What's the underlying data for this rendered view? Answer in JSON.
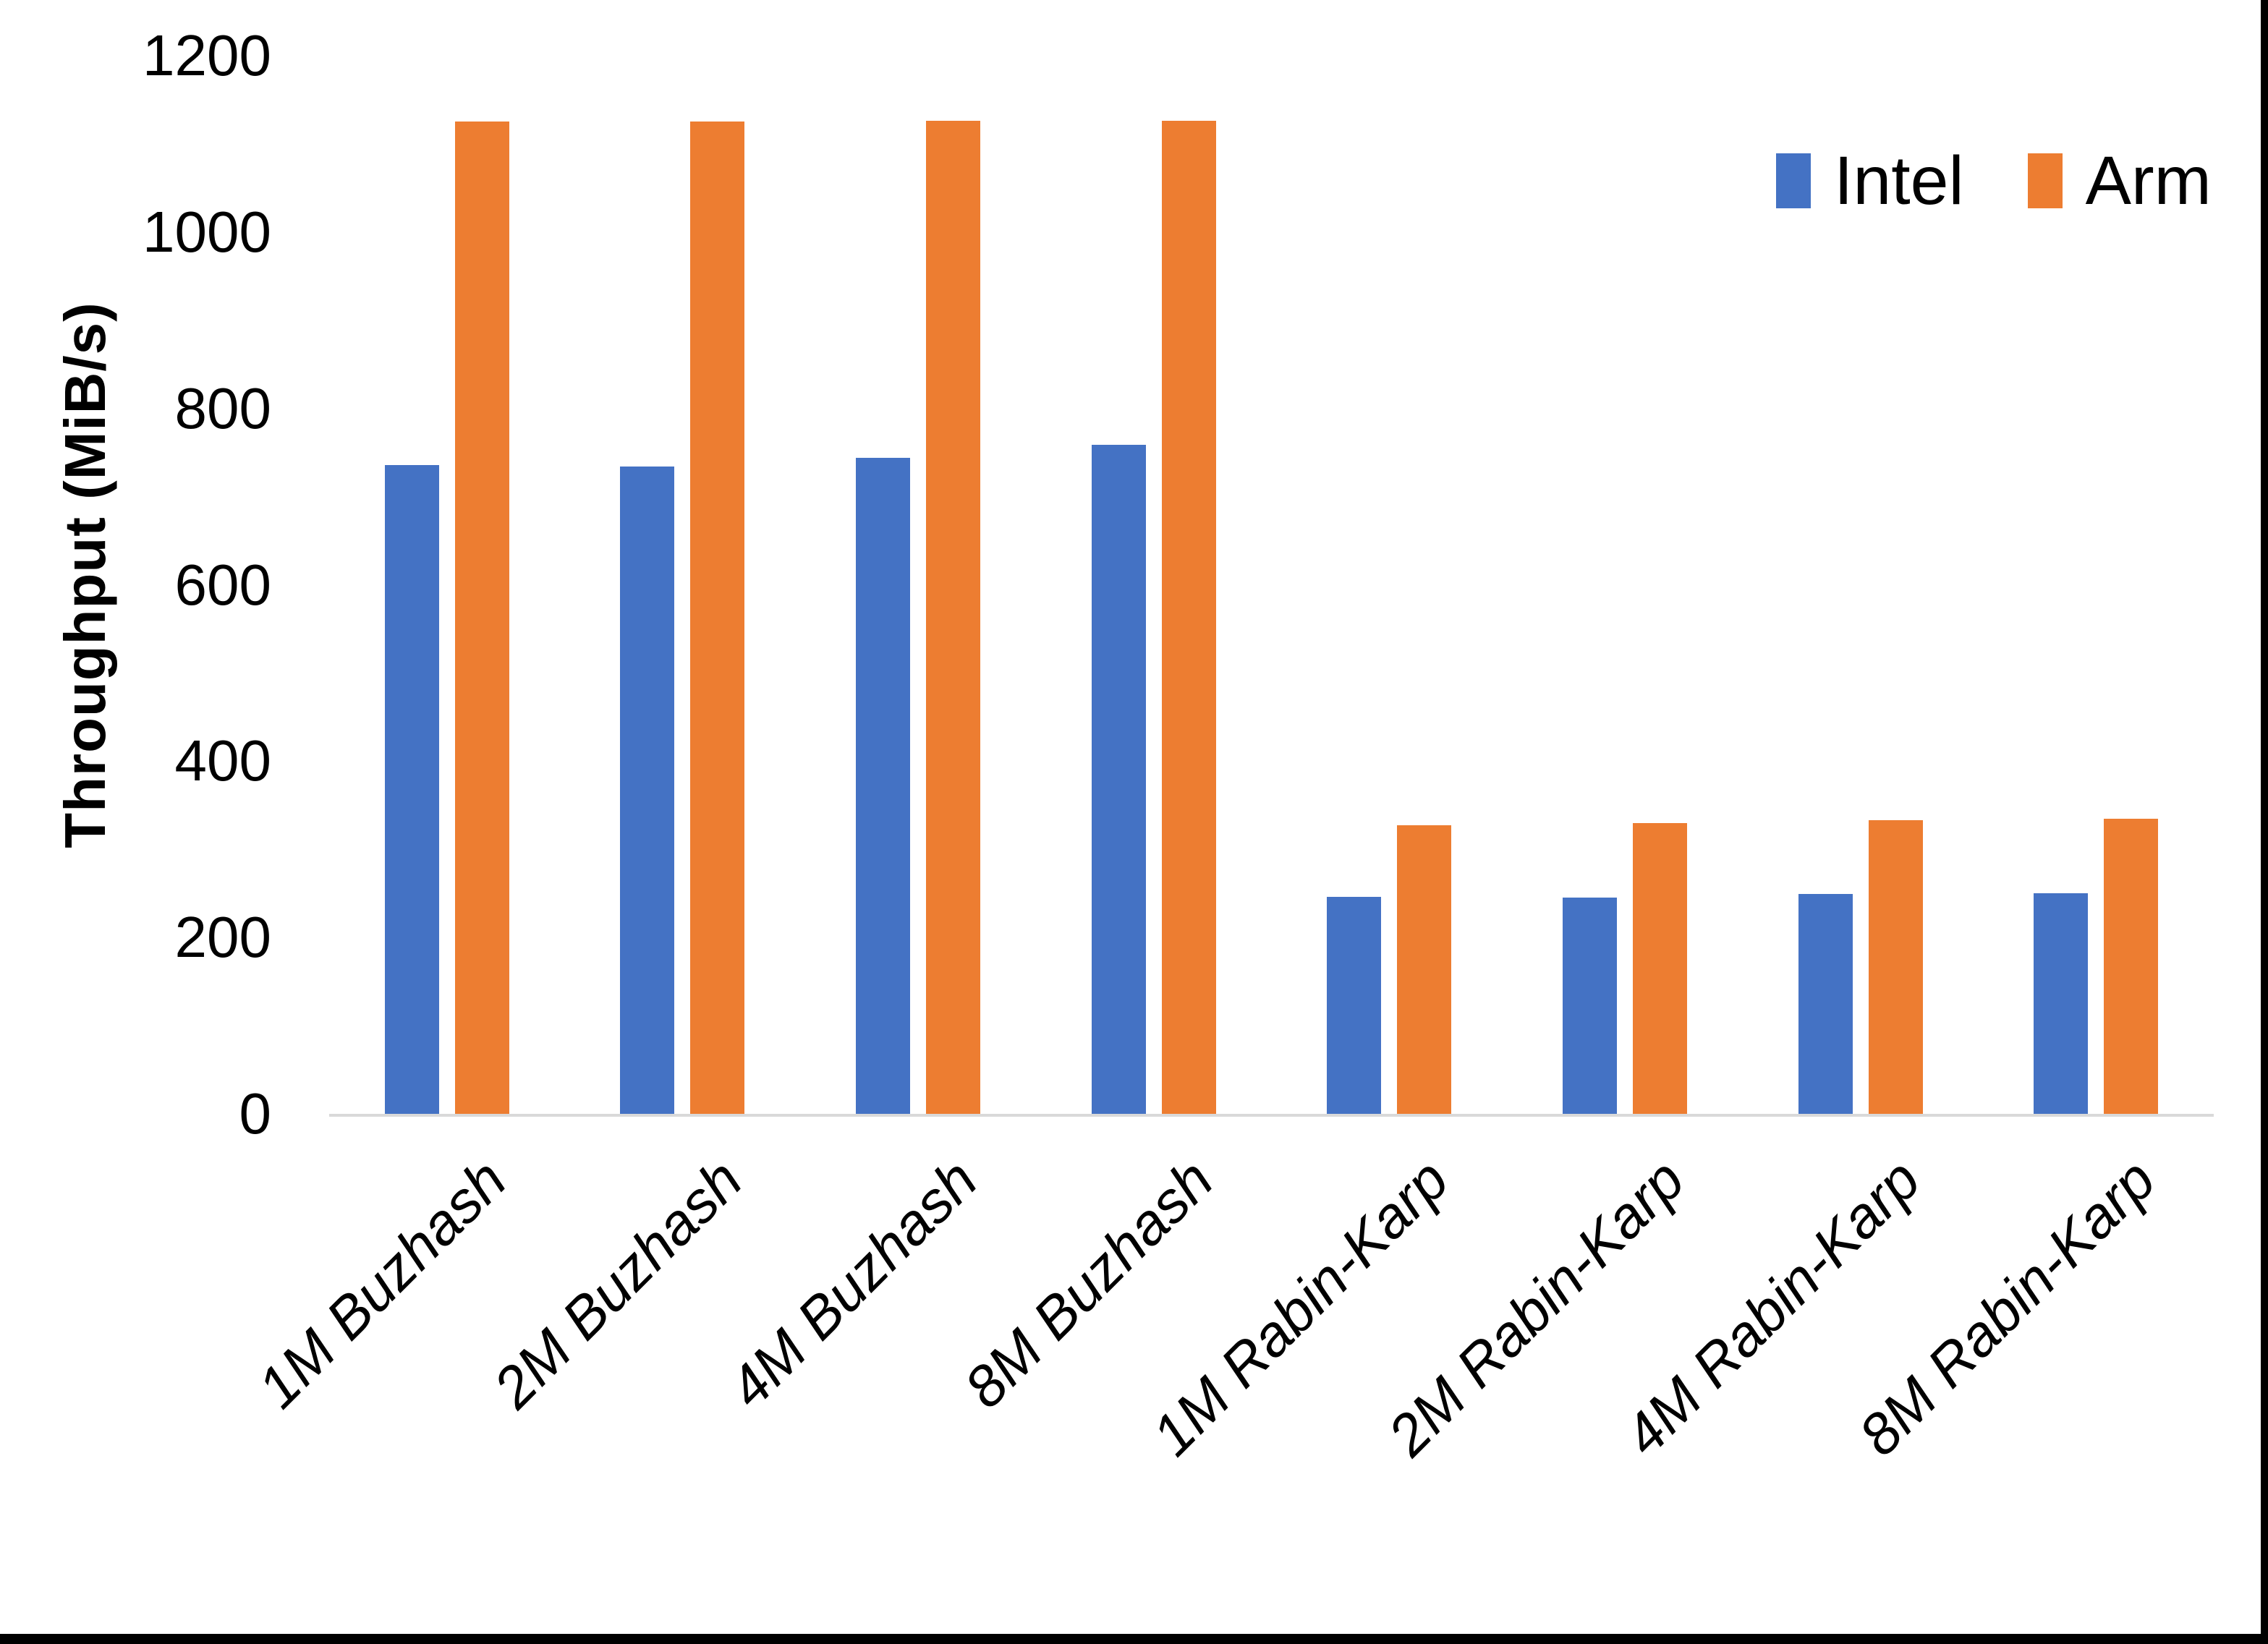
{
  "chart_data": {
    "type": "bar",
    "title": "",
    "ylabel": "Throughput (MiB/s)",
    "xlabel": "",
    "ylim": [
      0,
      1200
    ],
    "yticks": [
      0,
      200,
      400,
      600,
      800,
      1000,
      1200
    ],
    "grid": false,
    "legend_position": "top-right",
    "categories": [
      "1M Buzhash",
      "2M Buzhash",
      "4M Buzhash",
      "8M Buzhash",
      "1M Rabin-Karp",
      "2M Rabin-Karp",
      "4M Rabin-Karp",
      "8M Rabin-Karp"
    ],
    "series": [
      {
        "name": "Intel",
        "color": "#4472C4",
        "values": [
          736,
          734,
          744,
          759,
          246,
          245,
          249,
          250
        ]
      },
      {
        "name": "Arm",
        "color": "#ED7D31",
        "values": [
          1125,
          1125,
          1126,
          1126,
          327,
          330,
          333,
          335
        ]
      }
    ]
  },
  "colors": {
    "axis_line": "#D9D9D9",
    "text": "#000000",
    "frame_border": "#000000",
    "background": "#FFFFFF"
  }
}
